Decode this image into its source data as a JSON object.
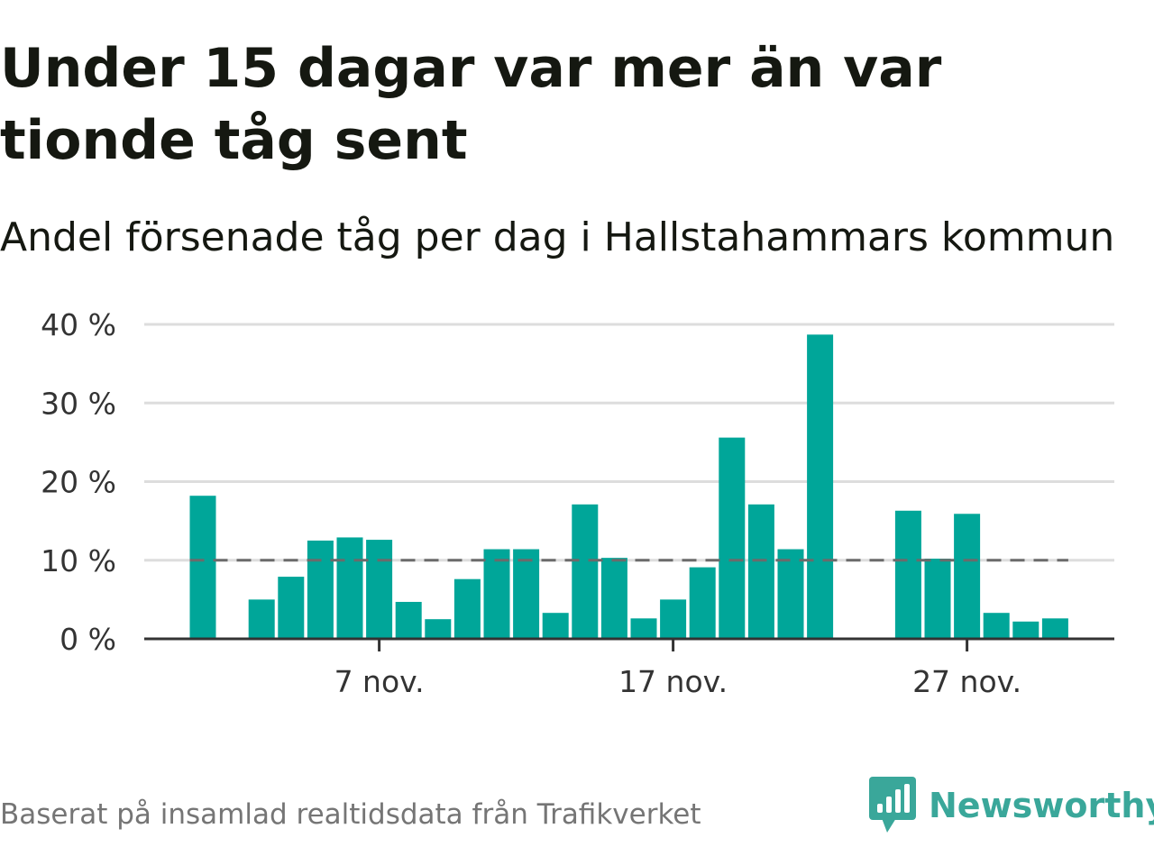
{
  "title": "Under 15 dagar var mer än var tionde tåg sent",
  "subtitle": "Andel försenade tåg per dag i Hallstahammars kommun",
  "source": "Baserat på insamlad realtidsdata från Trafikverket",
  "brand": {
    "name": "Newsworthy",
    "icon": "newsworthy-logo-icon"
  },
  "colors": {
    "bar": "#00a699",
    "reference_line": "#6b6b6b",
    "grid": "#dddddd",
    "axis": "#333333",
    "brand": "#3aa79a"
  },
  "chart_data": {
    "type": "bar",
    "x_start_day": 1,
    "x_month_label": "nov.",
    "y_unit": "%",
    "ylim": [
      0,
      40
    ],
    "yticks": [
      0,
      10,
      20,
      30,
      40
    ],
    "ytick_labels": [
      "0 %",
      "10 %",
      "20 %",
      "30 %",
      "40 %"
    ],
    "xticks": [
      7,
      17,
      27
    ],
    "xtick_labels": [
      "7 nov.",
      "17 nov.",
      "27 nov."
    ],
    "reference_line": 10,
    "grid": true,
    "values": [
      18.2,
      null,
      5.0,
      7.9,
      12.5,
      12.9,
      12.6,
      4.7,
      2.5,
      7.6,
      11.4,
      11.4,
      3.3,
      17.1,
      10.3,
      2.6,
      5.0,
      9.1,
      25.6,
      17.1,
      11.4,
      38.7,
      null,
      null,
      16.3,
      10.2,
      15.9,
      3.3,
      2.2,
      2.6
    ]
  }
}
